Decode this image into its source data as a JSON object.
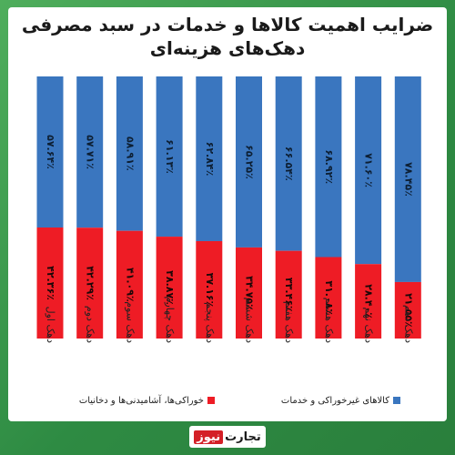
{
  "title_line1": "ضرایب اهمیت کالاها و خدمات در سبد مصرفی",
  "title_line2": "دهک‌های هزینه‌ای",
  "brand": {
    "part1": "تجارت",
    "part2": "نیوز"
  },
  "chart_data": {
    "type": "bar",
    "stacked": true,
    "normalized_to_100": true,
    "categories": [
      "دهک اول",
      "دهک دوم",
      "دهک سوم",
      "دهک چهارم",
      "دهک پنجم",
      "دهک ششم",
      "دهک هفتم",
      "دهک هشتم",
      "دهک نهم",
      "دهک دهم"
    ],
    "series": [
      {
        "name": "خوراکی‌ها، آشامیدنی‌ها و دخانیات",
        "color": "#ee1c25",
        "values": [
          42.36,
          42.29,
          41.09,
          38.87,
          37.16,
          34.75,
          33.46,
          31.08,
          28.4,
          21.55
        ],
        "labels": [
          "۴۲.۳۶٪",
          "۴۲.۲۹٪",
          "۴۱.۰۹٪",
          "۳۸.۸۷٪",
          "۳۷.۱۶٪",
          "۳۴.۷۵٪",
          "۳۳.۴۶٪",
          "۳۱.۰۸٪",
          "۲۸.۴۰٪",
          "۲۱.۵۵٪"
        ]
      },
      {
        "name": "کالاهای غیرخوراکی و خدمات",
        "color": "#3a76bf",
        "values": [
          57.64,
          57.71,
          58.91,
          61.13,
          62.84,
          65.25,
          66.54,
          68.92,
          71.6,
          78.45
        ],
        "labels": [
          "۵۷.۶۴٪",
          "۵۷.۷۱٪",
          "۵۸.۹۱٪",
          "۶۱.۱۳٪",
          "۶۲.۸۴٪",
          "۶۵.۲۵٪",
          "۶۶.۵۴٪",
          "۶۸.۹۲٪",
          "۷۱.۶۰٪",
          "۷۸.۴۵٪"
        ]
      }
    ],
    "ylim": [
      0,
      100
    ],
    "legend_position": "bottom"
  }
}
